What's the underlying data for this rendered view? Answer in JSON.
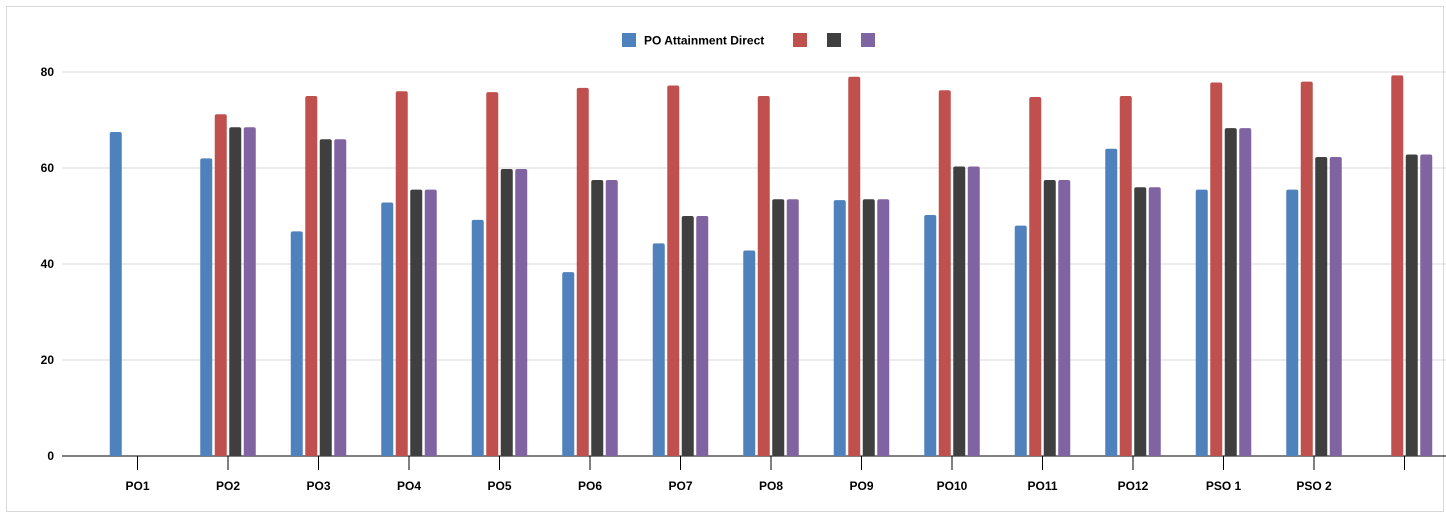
{
  "chart_data": {
    "type": "bar",
    "categories": [
      "PO1",
      "PO2",
      "PO3",
      "PO4",
      "PO5",
      "PO6",
      "PO7",
      "PO8",
      "PO9",
      "PO10",
      "PO11",
      "PO12",
      "PSO 1",
      "PSO 2",
      ""
    ],
    "series": [
      {
        "name": "PO Attainment Direct",
        "color": "#4f81bd",
        "values": [
          67.5,
          62,
          46.8,
          52.8,
          49.2,
          38.3,
          44.3,
          42.8,
          53.3,
          50.2,
          48,
          64,
          55.5,
          55.5,
          null
        ]
      },
      {
        "name": "",
        "color": "#c0504d",
        "values": [
          null,
          71.2,
          75,
          76,
          75.8,
          76.7,
          77.2,
          75,
          79,
          76.2,
          74.8,
          75,
          77.8,
          78,
          79.3
        ]
      },
      {
        "name": "",
        "color": "#3f3f3f",
        "values": [
          null,
          68.5,
          66,
          55.5,
          59.8,
          57.5,
          50,
          53.5,
          53.5,
          60.3,
          57.5,
          56,
          68.3,
          62.3,
          62.8
        ]
      },
      {
        "name": "",
        "color": "#8064a2",
        "values": [
          null,
          68.5,
          66,
          55.5,
          59.8,
          57.5,
          50,
          53.5,
          53.5,
          60.3,
          57.5,
          56,
          68.3,
          62.3,
          62.8
        ]
      }
    ],
    "yticks": [
      0,
      20,
      40,
      60,
      80
    ],
    "ylim": [
      0,
      80
    ],
    "grid": true,
    "legend_position": "top-center"
  }
}
